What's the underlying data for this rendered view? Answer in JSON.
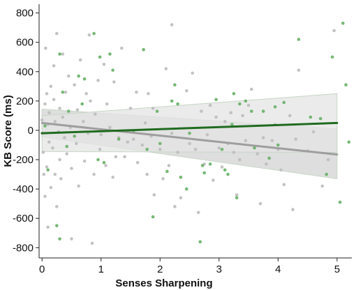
{
  "chart_data": {
    "type": "scatter",
    "title": "",
    "xlabel": "Senses Sharpening",
    "ylabel": "KB Score (ms)",
    "xlim": [
      -0.05,
      5.25
    ],
    "ylim": [
      -870,
      860
    ],
    "x_ticks": [
      0,
      1,
      2,
      3,
      4,
      5
    ],
    "y_ticks": [
      -800,
      -600,
      -400,
      -200,
      0,
      200,
      400,
      600,
      800
    ],
    "grid": false,
    "legend": "none",
    "colors": {
      "gray_points": "#bdbdbd",
      "green_points": "#66b066",
      "gray_line": "#9e9e9e",
      "green_line": "#1f6b1f",
      "band_light": "#e4e4e4",
      "band_dark": "#d0d0d0",
      "band_stroke": "#c8d6c8"
    },
    "series": [
      {
        "group": "gray",
        "kind": "points",
        "points": [
          [
            0.0,
            70
          ],
          [
            0.0,
            -20
          ],
          [
            0.02,
            -150
          ],
          [
            0.03,
            -300
          ],
          [
            0.05,
            180
          ],
          [
            0.05,
            -450
          ],
          [
            0.06,
            560
          ],
          [
            0.08,
            250
          ],
          [
            0.08,
            -250
          ],
          [
            0.1,
            40
          ],
          [
            0.1,
            -660
          ],
          [
            0.12,
            120
          ],
          [
            0.12,
            -80
          ],
          [
            0.15,
            300
          ],
          [
            0.15,
            -390
          ],
          [
            0.18,
            -120
          ],
          [
            0.2,
            440
          ],
          [
            0.2,
            210
          ],
          [
            0.22,
            60
          ],
          [
            0.22,
            -300
          ],
          [
            0.25,
            660
          ],
          [
            0.25,
            -520
          ],
          [
            0.28,
            -10
          ],
          [
            0.3,
            150
          ],
          [
            0.3,
            -200
          ],
          [
            0.32,
            -330
          ],
          [
            0.35,
            90
          ],
          [
            0.35,
            520
          ],
          [
            0.38,
            -50
          ],
          [
            0.4,
            260
          ],
          [
            0.42,
            -160
          ],
          [
            0.45,
            370
          ],
          [
            0.48,
            20
          ],
          [
            0.5,
            -260
          ],
          [
            0.5,
            -740
          ],
          [
            0.55,
            310
          ],
          [
            0.58,
            -90
          ],
          [
            0.6,
            140
          ],
          [
            0.62,
            -380
          ],
          [
            0.65,
            480
          ],
          [
            0.7,
            60
          ],
          [
            0.72,
            -210
          ],
          [
            0.75,
            250
          ],
          [
            0.78,
            -20
          ],
          [
            0.8,
            650
          ],
          [
            0.82,
            200
          ],
          [
            0.85,
            -770
          ],
          [
            0.88,
            -300
          ],
          [
            0.9,
            110
          ],
          [
            0.95,
            340
          ],
          [
            0.98,
            -130
          ],
          [
            1.0,
            -30
          ],
          [
            1.05,
            450
          ],
          [
            1.08,
            -240
          ],
          [
            1.1,
            180
          ],
          [
            1.15,
            20
          ],
          [
            1.2,
            -320
          ],
          [
            1.22,
            330
          ],
          [
            1.25,
            -180
          ],
          [
            1.3,
            -50
          ],
          [
            1.35,
            560
          ],
          [
            1.4,
            -180
          ],
          [
            1.45,
            -80
          ],
          [
            1.5,
            150
          ],
          [
            1.55,
            -60
          ],
          [
            1.6,
            260
          ],
          [
            1.62,
            -220
          ],
          [
            1.7,
            -100
          ],
          [
            1.75,
            50
          ],
          [
            1.78,
            -300
          ],
          [
            1.8,
            250
          ],
          [
            1.85,
            -40
          ],
          [
            1.88,
            150
          ],
          [
            1.9,
            -440
          ],
          [
            2.0,
            -130
          ],
          [
            2.05,
            -330
          ],
          [
            2.1,
            420
          ],
          [
            2.15,
            -240
          ],
          [
            2.2,
            -20
          ],
          [
            2.2,
            720
          ],
          [
            2.25,
            -520
          ],
          [
            2.3,
            -150
          ],
          [
            2.35,
            -460
          ],
          [
            2.45,
            270
          ],
          [
            2.5,
            -90
          ],
          [
            2.55,
            390
          ],
          [
            2.6,
            -130
          ],
          [
            2.65,
            -560
          ],
          [
            2.7,
            130
          ],
          [
            2.75,
            -230
          ],
          [
            2.8,
            -30
          ],
          [
            2.85,
            170
          ],
          [
            2.9,
            -340
          ],
          [
            2.95,
            90
          ],
          [
            3.0,
            -120
          ],
          [
            3.05,
            -250
          ],
          [
            3.1,
            60
          ],
          [
            3.15,
            -90
          ],
          [
            3.2,
            120
          ],
          [
            3.25,
            -150
          ],
          [
            3.3,
            -440
          ],
          [
            3.35,
            -200
          ],
          [
            3.4,
            100
          ],
          [
            3.45,
            -70
          ],
          [
            3.5,
            170
          ],
          [
            3.55,
            280
          ],
          [
            3.6,
            -110
          ],
          [
            3.65,
            -160
          ],
          [
            3.7,
            -500
          ],
          [
            3.75,
            -50
          ],
          [
            3.8,
            -230
          ],
          [
            3.9,
            -70
          ],
          [
            3.95,
            40
          ],
          [
            4.0,
            -130
          ],
          [
            4.05,
            -270
          ],
          [
            4.1,
            -370
          ],
          [
            4.2,
            100
          ],
          [
            4.25,
            -540
          ],
          [
            4.3,
            -60
          ],
          [
            4.35,
            410
          ],
          [
            4.5,
            -140
          ],
          [
            4.6,
            -10
          ],
          [
            4.75,
            -380
          ],
          [
            4.85,
            -200
          ],
          [
            4.95,
            680
          ]
        ]
      },
      {
        "group": "green",
        "kind": "points",
        "points": [
          [
            0.05,
            30
          ],
          [
            0.1,
            -270
          ],
          [
            0.25,
            -650
          ],
          [
            0.3,
            -740
          ],
          [
            0.3,
            520
          ],
          [
            0.35,
            260
          ],
          [
            0.42,
            -110
          ],
          [
            0.45,
            130
          ],
          [
            0.55,
            -40
          ],
          [
            0.62,
            370
          ],
          [
            0.68,
            180
          ],
          [
            0.72,
            350
          ],
          [
            0.88,
            660
          ],
          [
            0.95,
            -200
          ],
          [
            0.98,
            500
          ],
          [
            1.05,
            -220
          ],
          [
            1.15,
            520
          ],
          [
            1.2,
            410
          ],
          [
            1.3,
            -60
          ],
          [
            1.55,
            -10
          ],
          [
            1.72,
            550
          ],
          [
            1.78,
            -130
          ],
          [
            1.88,
            -590
          ],
          [
            1.95,
            130
          ],
          [
            2.0,
            -90
          ],
          [
            2.12,
            -280
          ],
          [
            2.2,
            200
          ],
          [
            2.25,
            310
          ],
          [
            2.3,
            180
          ],
          [
            2.35,
            -320
          ],
          [
            2.45,
            -400
          ],
          [
            2.5,
            -20
          ],
          [
            2.68,
            -760
          ],
          [
            2.72,
            -240
          ],
          [
            2.75,
            -290
          ],
          [
            2.85,
            -230
          ],
          [
            2.95,
            210
          ],
          [
            3.05,
            -130
          ],
          [
            3.1,
            -270
          ],
          [
            3.15,
            -300
          ],
          [
            3.22,
            40
          ],
          [
            3.25,
            250
          ],
          [
            3.3,
            -460
          ],
          [
            3.35,
            180
          ],
          [
            3.45,
            200
          ],
          [
            3.55,
            130
          ],
          [
            3.6,
            -120
          ],
          [
            3.75,
            130
          ],
          [
            3.85,
            -190
          ],
          [
            3.95,
            160
          ],
          [
            4.0,
            -100
          ],
          [
            4.1,
            190
          ],
          [
            4.35,
            620
          ],
          [
            4.55,
            90
          ],
          [
            4.72,
            80
          ],
          [
            4.82,
            -300
          ],
          [
            4.92,
            500
          ],
          [
            5.05,
            -490
          ],
          [
            5.1,
            730
          ],
          [
            5.15,
            310
          ],
          [
            5.2,
            -80
          ]
        ]
      }
    ],
    "fits": [
      {
        "group": "gray",
        "x": [
          0,
          5
        ],
        "y": [
          50,
          -165
        ],
        "ci_upper": [
          145,
          10
        ],
        "ci_lower": [
          -45,
          -330
        ]
      },
      {
        "group": "green",
        "x": [
          0,
          5
        ],
        "y": [
          -20,
          50
        ],
        "ci_upper": [
          100,
          250
        ],
        "ci_lower": [
          -145,
          -150
        ]
      }
    ]
  }
}
